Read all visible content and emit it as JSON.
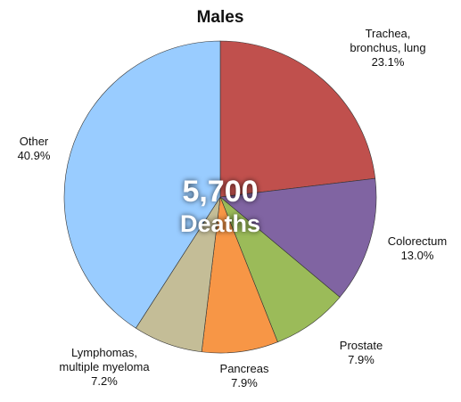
{
  "chart_data": {
    "type": "pie",
    "title": "Males",
    "categories": [
      "Trachea,\nbronchus, lung",
      "Colorectum",
      "Prostate",
      "Pancreas",
      "Lymphomas,\nmultiple myeloma",
      "Other"
    ],
    "values": [
      23.1,
      13.0,
      7.9,
      7.9,
      7.2,
      40.9
    ],
    "value_labels": [
      "23.1%",
      "13.0%",
      "7.9%",
      "7.9%",
      "7.2%",
      "40.9%"
    ],
    "colors": [
      "#c0504d",
      "#8064a2",
      "#9bbb59",
      "#f79646",
      "#c4bd97",
      "#99ccff"
    ],
    "annotations": [
      "5,700",
      "Deaths"
    ]
  }
}
